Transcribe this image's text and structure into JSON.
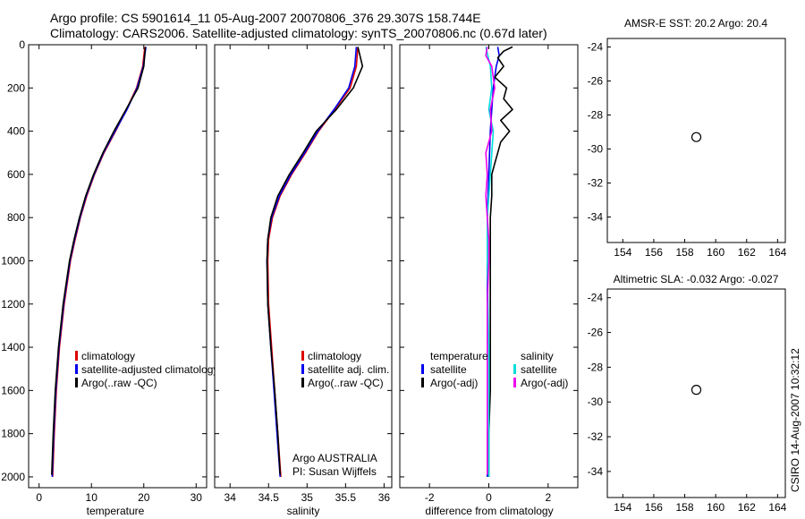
{
  "header": {
    "line1": "Argo profile: CS 5901614_11 05-Aug-2007 20070806_376 29.307S 158.744E",
    "line2": "Climatology: CARS2006. Satellite-adjusted climatology: synTS_20070806.nc (0.67d later)"
  },
  "colors": {
    "climatology": "#dd0000",
    "satellite": "#0000ee",
    "argo": "#000000",
    "sal_sat": "#00dddd",
    "sal_argo": "#ee00ee"
  },
  "chart_data": [
    {
      "id": "temperature",
      "type": "line",
      "xlabel": "temperature",
      "xlim": [
        -2,
        32
      ],
      "ylim": [
        2050,
        0
      ],
      "xticks": [
        0,
        10,
        20,
        30
      ],
      "yticks": [
        0,
        200,
        400,
        600,
        800,
        1000,
        1200,
        1400,
        1600,
        1800,
        2000
      ],
      "legend": [
        "climatology",
        "satellite-adjusted climatology",
        "Argo(..raw -QC)"
      ],
      "series": [
        {
          "name": "climatology",
          "depth": [
            10,
            100,
            200,
            300,
            400,
            500,
            600,
            700,
            800,
            900,
            1000,
            1200,
            1400,
            1600,
            1800,
            2000
          ],
          "values": [
            20.2,
            19.8,
            18.6,
            16.7,
            14.6,
            12.4,
            10.6,
            9.1,
            7.9,
            6.9,
            6.0,
            4.8,
            3.9,
            3.3,
            2.9,
            2.6
          ]
        },
        {
          "name": "satellite-adjusted climatology",
          "depth": [
            10,
            100,
            200,
            300,
            400,
            500,
            600,
            700,
            800,
            900,
            1000,
            1200,
            1400,
            1600,
            1800,
            2000
          ],
          "values": [
            20.4,
            19.9,
            18.7,
            16.8,
            14.5,
            12.3,
            10.5,
            9.0,
            7.8,
            6.8,
            5.9,
            4.7,
            3.8,
            3.2,
            2.8,
            2.5
          ]
        },
        {
          "name": "Argo(..raw -QC)",
          "depth": [
            10,
            100,
            200,
            300,
            400,
            500,
            600,
            700,
            800,
            900,
            1000,
            1200,
            1400,
            1600,
            1800,
            1990
          ],
          "values": [
            20.3,
            20.0,
            18.9,
            16.6,
            14.3,
            12.2,
            10.4,
            8.9,
            7.7,
            6.7,
            5.8,
            4.6,
            3.7,
            3.1,
            2.7,
            2.4
          ]
        }
      ]
    },
    {
      "id": "salinity",
      "type": "line",
      "xlabel": "salinity",
      "xlim": [
        33.8,
        36.1
      ],
      "ylim": [
        2050,
        0
      ],
      "xticks": [
        34,
        34.5,
        35,
        35.5,
        36
      ],
      "legend": [
        "climatology",
        "satellite adj. clim.",
        "Argo(..raw -QC)"
      ],
      "annotation": [
        "Argo AUSTRALIA",
        "PI: Susan Wijffels"
      ],
      "series": [
        {
          "name": "climatology",
          "depth": [
            10,
            100,
            200,
            300,
            400,
            500,
            600,
            700,
            800,
            900,
            1000,
            1200,
            1400,
            1600,
            1800,
            2000
          ],
          "values": [
            35.66,
            35.64,
            35.56,
            35.36,
            35.15,
            34.98,
            34.8,
            34.65,
            34.55,
            34.5,
            34.49,
            34.5,
            34.54,
            34.58,
            34.62,
            34.66
          ]
        },
        {
          "name": "satellite adj. clim.",
          "depth": [
            10,
            100,
            200,
            300,
            400,
            500,
            600,
            700,
            800,
            900,
            1000,
            1200,
            1400,
            1600,
            1800,
            2000
          ],
          "values": [
            35.64,
            35.62,
            35.54,
            35.35,
            35.14,
            34.97,
            34.79,
            34.64,
            34.54,
            34.49,
            34.48,
            34.49,
            34.53,
            34.57,
            34.61,
            34.65
          ]
        },
        {
          "name": "Argo(..raw -QC)",
          "depth": [
            10,
            100,
            200,
            300,
            400,
            500,
            600,
            700,
            800,
            900,
            1000,
            1200,
            1400,
            1600,
            1800,
            1990
          ],
          "values": [
            35.66,
            35.72,
            35.6,
            35.38,
            35.12,
            34.95,
            34.77,
            34.62,
            34.53,
            34.49,
            34.48,
            34.49,
            34.53,
            34.58,
            34.62,
            34.65
          ]
        }
      ]
    },
    {
      "id": "difference",
      "type": "line",
      "xlabel": "difference from climatology",
      "xlim": [
        -3,
        3
      ],
      "ylim": [
        2050,
        0
      ],
      "xticks": [
        -2,
        0,
        2
      ],
      "legend_temperature": {
        "title": "temperature",
        "items": [
          "satellite",
          "Argo(-adj)"
        ]
      },
      "legend_salinity": {
        "title": "salinity",
        "items": [
          "satellite",
          "Argo(-adj)"
        ]
      },
      "series": [
        {
          "name": "temperature satellite",
          "depth": [
            10,
            50,
            100,
            200,
            300,
            400,
            600,
            800,
            1000,
            1400,
            2000
          ],
          "values": [
            0.3,
            0.35,
            0.25,
            0.15,
            0.1,
            0.05,
            0.0,
            -0.05,
            -0.05,
            -0.05,
            -0.05
          ]
        },
        {
          "name": "temperature Argo(-adj)",
          "depth": [
            10,
            30,
            60,
            100,
            150,
            200,
            250,
            300,
            350,
            400,
            450,
            500,
            550,
            600,
            700,
            800,
            900,
            1000,
            1200,
            1400,
            1600,
            1800,
            2000
          ],
          "values": [
            0.8,
            0.5,
            0.3,
            0.5,
            0.2,
            0.6,
            0.5,
            0.8,
            0.4,
            0.7,
            0.4,
            0.3,
            0.2,
            0.1,
            0.1,
            0.05,
            0.05,
            0.05,
            0.05,
            0.05,
            0.05,
            0.0,
            0.0
          ]
        },
        {
          "name": "salinity satellite",
          "depth": [
            10,
            100,
            200,
            300,
            400,
            600,
            800,
            1000,
            1400,
            2000
          ],
          "values": [
            -0.1,
            0.05,
            0.1,
            0.0,
            0.15,
            0.05,
            -0.05,
            -0.05,
            0.0,
            0.0
          ]
        },
        {
          "name": "salinity Argo(-adj)",
          "depth": [
            10,
            50,
            100,
            200,
            300,
            400,
            500,
            600,
            700,
            800,
            900,
            1000,
            1200,
            1400,
            1600,
            1800,
            1990
          ],
          "values": [
            -0.05,
            -0.1,
            0.1,
            0.2,
            0.05,
            0.1,
            -0.1,
            -0.05,
            -0.1,
            -0.05,
            0.0,
            0.0,
            -0.05,
            -0.05,
            -0.05,
            -0.05,
            -0.05
          ]
        }
      ]
    }
  ],
  "maps": [
    {
      "id": "sst-map",
      "title": "AMSR-E SST: 20.2 Argo: 20.4",
      "yticks": [
        "-24",
        "-26",
        "-28",
        "-30",
        "-32",
        "-34"
      ],
      "xticks": [
        "154",
        "156",
        "158",
        "160",
        "162",
        "164"
      ],
      "lon": [
        153,
        164.5
      ],
      "lat": [
        -35.5,
        -23.5
      ],
      "profile_marker": [
        158.75,
        -29.3
      ]
    },
    {
      "id": "sla-map",
      "title": "Altimetric SLA: -0.032 Argo: -0.027",
      "yticks": [
        "-24",
        "-26",
        "-28",
        "-30",
        "-32",
        "-34"
      ],
      "xticks": [
        "154",
        "156",
        "158",
        "160",
        "162",
        "164"
      ],
      "lon": [
        153,
        164.5
      ],
      "lat": [
        -35.5,
        -23.5
      ],
      "profile_marker": [
        158.75,
        -29.3
      ]
    }
  ],
  "credit": "CSIRO 14-Aug-2007 10:32:12"
}
